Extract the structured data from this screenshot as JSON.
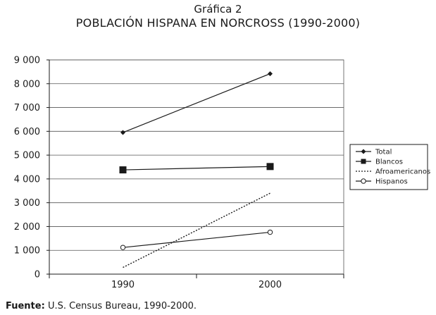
{
  "header": {
    "title": "Gráfica 2",
    "subtitle": "POBLACIÓN HISPANA EN NORCROSS (1990-2000)"
  },
  "footer": {
    "source_label": "Fuente:",
    "source_text": "U.S. Census Bureau, 1990-2000."
  },
  "chart_data": {
    "type": "line",
    "title": "POBLACIÓN HISPANA EN NORCROSS (1990-2000)",
    "xlabel": "",
    "ylabel": "",
    "categories": [
      "1990",
      "2000"
    ],
    "ylim": [
      0,
      9000
    ],
    "yticks": [
      0,
      1000,
      2000,
      3000,
      4000,
      5000,
      6000,
      7000,
      8000,
      9000
    ],
    "ytick_labels": [
      "0",
      "1 000",
      "2 000",
      "3 000",
      "4 000",
      "5 000",
      "6 000",
      "7 000",
      "8 000",
      "9 000"
    ],
    "grid": true,
    "legend_position": "right",
    "series": [
      {
        "name": "Total",
        "values": [
          5950,
          8420
        ],
        "marker": "diamond",
        "line": "solid",
        "color": "#1a1a1a"
      },
      {
        "name": "Blancos",
        "values": [
          4380,
          4520
        ],
        "marker": "square",
        "line": "solid",
        "color": "#1a1a1a"
      },
      {
        "name": "Afroamericanos",
        "values": [
          280,
          3400
        ],
        "marker": "none",
        "line": "dotted",
        "color": "#1a1a1a"
      },
      {
        "name": "Hispanos",
        "values": [
          1120,
          1760
        ],
        "marker": "circle",
        "line": "solid",
        "color": "#1a1a1a"
      }
    ]
  }
}
